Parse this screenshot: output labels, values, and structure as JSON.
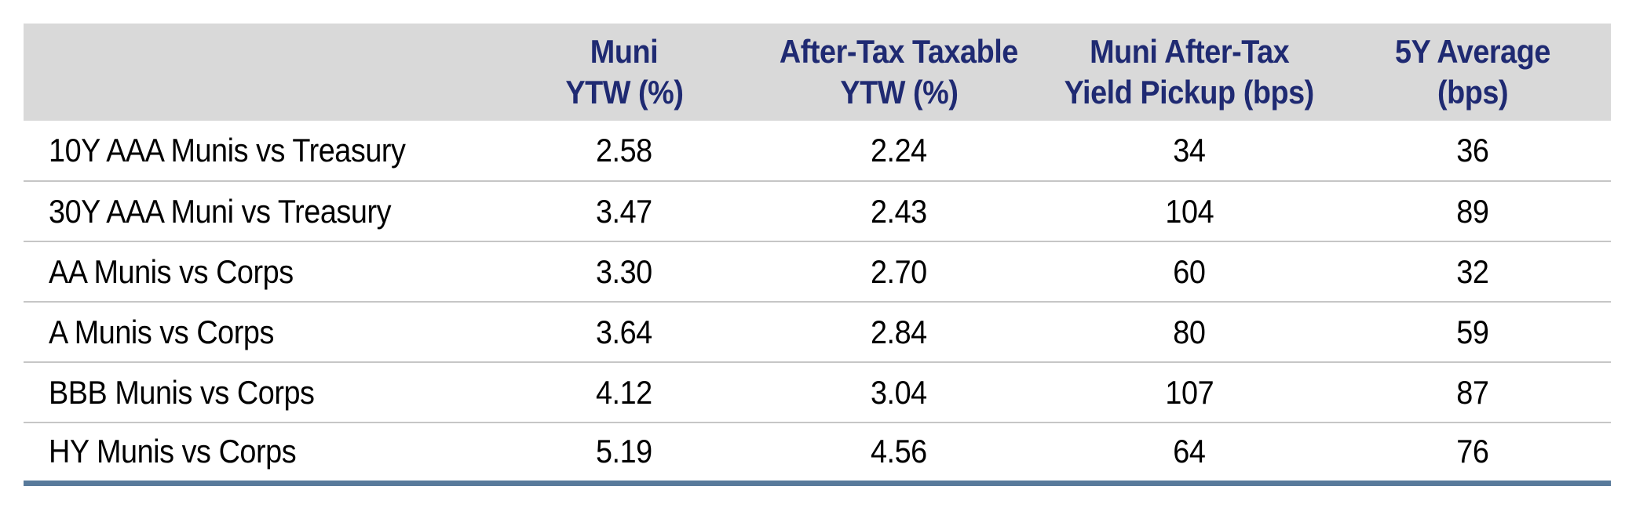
{
  "colors": {
    "header_band": "#d9d9d9",
    "header_text_navy": "#1f2a72",
    "row_text": "#000000",
    "row_separator": "#c6c6c6",
    "bottom_rule_blue": "#587a9b",
    "background": "#ffffff"
  },
  "table": {
    "header": {
      "label_column": "",
      "col_muni_line1": "Muni",
      "col_muni_line2": "YTW (%)",
      "col_attax_line1": "After-Tax Taxable",
      "col_attax_line2": "YTW (%)",
      "col_pickup_line1": "Muni After-Tax",
      "col_pickup_line2": "Yield Pickup (bps)",
      "col_avg_line1": "5Y Average",
      "col_avg_line2": "(bps)"
    },
    "rows": [
      {
        "label": "10Y AAA Munis vs Treasury",
        "muni_ytw": "2.58",
        "after_tax_taxable_ytw": "2.24",
        "pickup_bps": "34",
        "avg_5y_bps": "36"
      },
      {
        "label": "30Y AAA Muni vs Treasury",
        "muni_ytw": "3.47",
        "after_tax_taxable_ytw": "2.43",
        "pickup_bps": "104",
        "avg_5y_bps": "89"
      },
      {
        "label": "AA Munis vs Corps",
        "muni_ytw": "3.30",
        "after_tax_taxable_ytw": "2.70",
        "pickup_bps": "60",
        "avg_5y_bps": "32"
      },
      {
        "label": "A Munis vs Corps",
        "muni_ytw": "3.64",
        "after_tax_taxable_ytw": "2.84",
        "pickup_bps": "80",
        "avg_5y_bps": "59"
      },
      {
        "label": "BBB Munis vs Corps",
        "muni_ytw": "4.12",
        "after_tax_taxable_ytw": "3.04",
        "pickup_bps": "107",
        "avg_5y_bps": "87"
      },
      {
        "label": "HY Munis vs Corps",
        "muni_ytw": "5.19",
        "after_tax_taxable_ytw": "4.56",
        "pickup_bps": "64",
        "avg_5y_bps": "76"
      }
    ]
  },
  "chart_data": {
    "type": "table",
    "title": "",
    "columns": [
      "",
      "Muni YTW (%)",
      "After-Tax Taxable YTW (%)",
      "Muni After-Tax Yield Pickup (bps)",
      "5Y Average (bps)"
    ],
    "rows": [
      [
        "10Y AAA Munis vs Treasury",
        2.58,
        2.24,
        34,
        36
      ],
      [
        "30Y AAA Muni vs Treasury",
        3.47,
        2.43,
        104,
        89
      ],
      [
        "AA Munis vs Corps",
        3.3,
        2.7,
        60,
        32
      ],
      [
        "A Munis vs Corps",
        3.64,
        2.84,
        80,
        59
      ],
      [
        "BBB Munis vs Corps",
        4.12,
        3.04,
        107,
        87
      ],
      [
        "HY Munis vs Corps",
        5.19,
        4.56,
        64,
        76
      ]
    ],
    "layout_hints": {
      "header_background": "#d9d9d9",
      "header_text_color": "#1f2a72",
      "bottom_rule_color": "#587a9b",
      "value_alignment": "center",
      "label_alignment": "left"
    }
  }
}
